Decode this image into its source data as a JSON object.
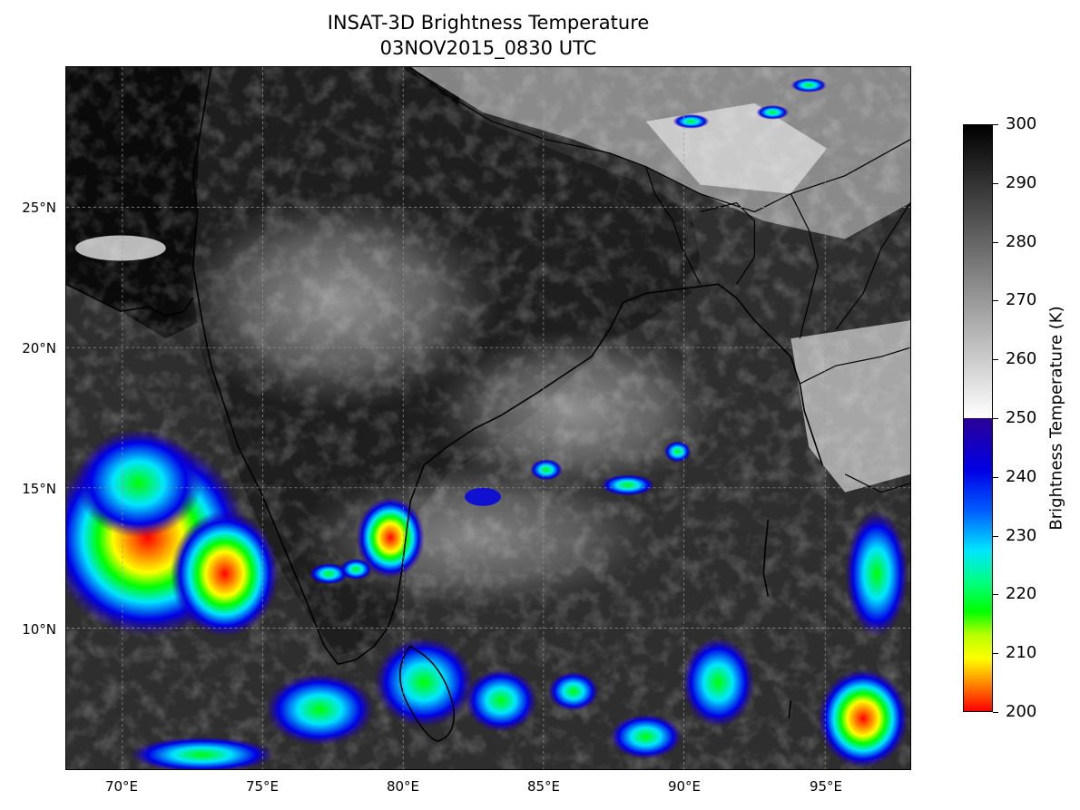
{
  "title": "INSAT-3D Brightness Temperature",
  "subtitle": "03NOV2015_0830 UTC",
  "map": {
    "lon_range": [
      68,
      98
    ],
    "lat_range": [
      5,
      30
    ],
    "lat_labels": [
      {
        "value": 25,
        "label": "25°N"
      },
      {
        "value": 20,
        "label": "20°N"
      },
      {
        "value": 15,
        "label": "15°N"
      },
      {
        "value": 10,
        "label": "10°N"
      }
    ],
    "lon_labels": [
      {
        "value": 70,
        "label": "70°E"
      },
      {
        "value": 75,
        "label": "75°E"
      },
      {
        "value": 80,
        "label": "80°E"
      },
      {
        "value": 85,
        "label": "85°E"
      },
      {
        "value": 90,
        "label": "90°E"
      },
      {
        "value": 95,
        "label": "95°E"
      }
    ],
    "gridlines": true
  },
  "colorbar": {
    "label": "Brightness Temperature (K)",
    "min": 200,
    "max": 300,
    "ticks": [
      {
        "value": 300,
        "label": "300"
      },
      {
        "value": 290,
        "label": "290"
      },
      {
        "value": 280,
        "label": "280"
      },
      {
        "value": 270,
        "label": "270"
      },
      {
        "value": 260,
        "label": "260"
      },
      {
        "value": 250,
        "label": "250"
      },
      {
        "value": 240,
        "label": "240"
      },
      {
        "value": 230,
        "label": "230"
      },
      {
        "value": 220,
        "label": "220"
      },
      {
        "value": 210,
        "label": "210"
      },
      {
        "value": 200,
        "label": "200"
      }
    ],
    "colors": {
      "cold_top": "#000000",
      "cold_bottom": "#ffffff",
      "warm_top": "#2a0096",
      "blue": "#0000e6",
      "cyan": "#00e5ff",
      "green": "#00ff00",
      "yellow": "#ffff00",
      "orange": "#ff9000",
      "red": "#ff0000"
    }
  }
}
